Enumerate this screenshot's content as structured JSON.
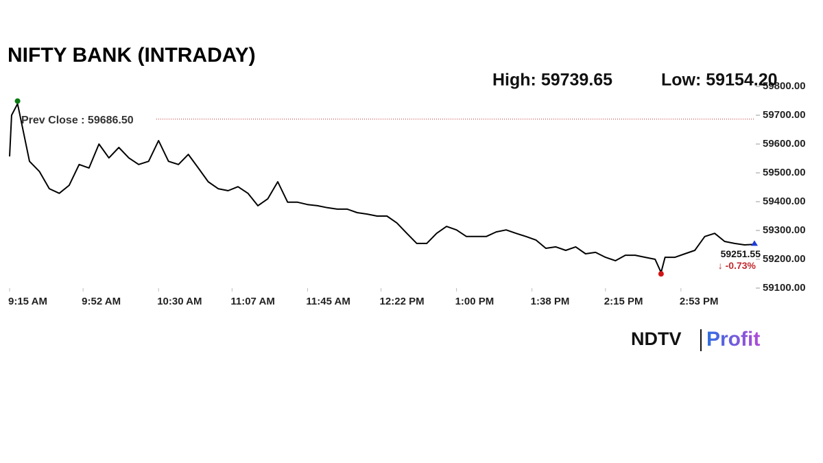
{
  "chart_data": {
    "type": "line",
    "title": "NIFTY BANK (INTRADAY)",
    "color": "#000000",
    "x": [
      "9:15 AM",
      "9:16 AM",
      "9:19 AM",
      "9:20 AM",
      "9:25 AM",
      "9:30 AM",
      "9:35 AM",
      "9:40 AM",
      "9:45 AM",
      "9:50 AM",
      "9:55 AM",
      "10:00 AM",
      "10:05 AM",
      "10:10 AM",
      "10:15 AM",
      "10:20 AM",
      "10:25 AM",
      "10:30 AM",
      "10:35 AM",
      "10:40 AM",
      "10:45 AM",
      "10:50 AM",
      "10:55 AM",
      "11:00 AM",
      "11:05 AM",
      "11:10 AM",
      "11:15 AM",
      "11:20 AM",
      "11:25 AM",
      "11:30 AM",
      "11:35 AM",
      "11:40 AM",
      "11:45 AM",
      "11:50 AM",
      "11:55 AM",
      "12:00 PM",
      "12:05 PM",
      "12:10 PM",
      "12:15 PM",
      "12:20 PM",
      "12:25 PM",
      "12:30 PM",
      "12:35 PM",
      "12:40 PM",
      "12:45 PM",
      "12:50 PM",
      "12:55 PM",
      "1:00 PM",
      "1:05 PM",
      "1:10 PM",
      "1:15 PM",
      "1:20 PM",
      "1:25 PM",
      "1:30 PM",
      "1:35 PM",
      "1:40 PM",
      "1:45 PM",
      "1:50 PM",
      "1:55 PM",
      "2:00 PM",
      "2:05 PM",
      "2:10 PM",
      "2:15 PM",
      "2:20 PM",
      "2:25 PM",
      "2:30 PM",
      "2:35 PM",
      "2:40 PM",
      "2:43 PM",
      "2:45 PM",
      "2:50 PM",
      "2:55 PM",
      "3:00 PM",
      "3:05 PM",
      "3:10 PM",
      "3:15 PM",
      "3:20 PM",
      "3:25 PM",
      "3:30 PM"
    ],
    "values": [
      59557,
      59700,
      59739.65,
      59707,
      59540,
      59505,
      59445,
      59429,
      59457,
      59529,
      59517,
      59600,
      59552,
      59588,
      59552,
      59529,
      59540,
      59612,
      59540,
      59529,
      59564,
      59517,
      59469,
      59445,
      59438,
      59452,
      59429,
      59386,
      59410,
      59469,
      59398,
      59398,
      59390,
      59386,
      59379,
      59374,
      59374,
      59362,
      59357,
      59350,
      59350,
      59326,
      59290,
      59255,
      59255,
      59290,
      59314,
      59302,
      59279,
      59279,
      59279,
      59295,
      59302,
      59290,
      59279,
      59267,
      59238,
      59243,
      59231,
      59243,
      59219,
      59224,
      59207,
      59195,
      59214,
      59214,
      59207,
      59200,
      59154.2,
      59207,
      59207,
      59219,
      59231,
      59279,
      59290,
      59262,
      59255,
      59250,
      59251.55
    ],
    "xlim": [
      "9:15 AM",
      "3:30 PM"
    ],
    "xticks": [
      "9:15 AM",
      "9:52 AM",
      "10:30 AM",
      "11:07 AM",
      "11:45 AM",
      "12:22 PM",
      "1:00 PM",
      "1:38 PM",
      "2:15 PM",
      "2:53 PM"
    ],
    "ylim": [
      59100,
      59800
    ],
    "yticks": [
      {
        "value": 59100,
        "label": "59100.00"
      },
      {
        "value": 59200,
        "label": "59200.00"
      },
      {
        "value": 59300,
        "label": "59300.00"
      },
      {
        "value": 59400,
        "label": "59400.00"
      },
      {
        "value": 59500,
        "label": "59500.00"
      },
      {
        "value": 59600,
        "label": "59600.00"
      },
      {
        "value": 59700,
        "label": "59700.00"
      },
      {
        "value": 59800,
        "label": "59800.00"
      }
    ],
    "high": {
      "value": 59739.65,
      "label": "High: 59739.65"
    },
    "low": {
      "value": 59154.2,
      "label": "Low: 59154.20"
    },
    "prev_close": {
      "value": 59686.5,
      "label": "Prev Close : 59686.50"
    },
    "last": {
      "value": 59251.55,
      "label": "59251.55",
      "change": "↓ -0.73%"
    }
  },
  "logo": [
    "NDTV",
    "Profit"
  ]
}
